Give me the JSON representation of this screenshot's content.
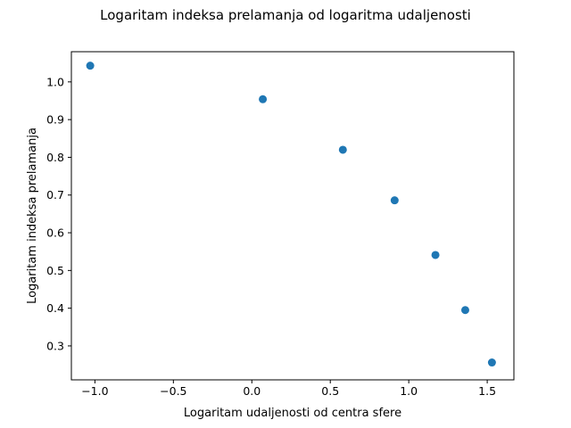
{
  "chart_data": {
    "type": "scatter",
    "title": "Logaritam indeksa prelamanja od logaritma udaljenosti",
    "xlabel": "Logaritam udaljenosti od centra sfere",
    "ylabel": "Logaritam indeksa prelamanja",
    "xlim": [
      -1.15,
      1.67
    ],
    "ylim": [
      0.21,
      1.08
    ],
    "xticks": [
      -1.0,
      -0.5,
      0.0,
      0.5,
      1.0,
      1.5
    ],
    "xtick_labels": [
      "−1.0",
      "−0.5",
      "0.0",
      "0.5",
      "1.0",
      "1.5"
    ],
    "yticks": [
      0.3,
      0.4,
      0.5,
      0.6,
      0.7,
      0.8,
      0.9,
      1.0
    ],
    "ytick_labels": [
      "0.3",
      "0.4",
      "0.5",
      "0.6",
      "0.7",
      "0.8",
      "0.9",
      "1.0"
    ],
    "grid": false,
    "series": [
      {
        "color": "#1f77b4",
        "x": [
          -1.03,
          0.07,
          0.58,
          0.91,
          1.17,
          1.36,
          1.53
        ],
        "y": [
          1.043,
          0.954,
          0.82,
          0.686,
          0.541,
          0.395,
          0.256
        ]
      }
    ]
  }
}
